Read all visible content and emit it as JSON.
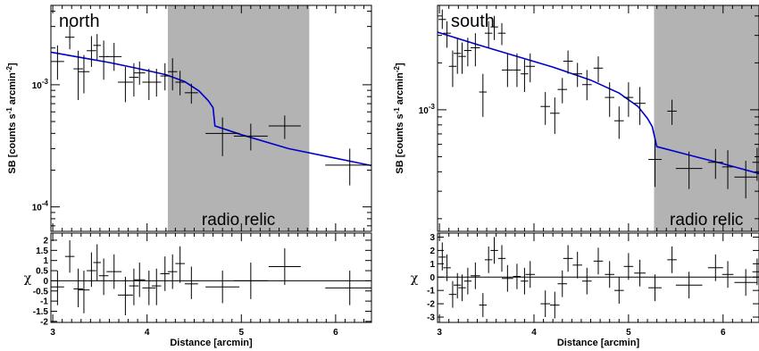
{
  "chart_data": [
    {
      "type": "scatter",
      "panel_label": "north",
      "ylabel": "SB [counts s-1 arcmin-2]",
      "xlabel": "Distance [arcmin]",
      "residual_label": "χ",
      "shade_label": "radio relic",
      "shade_range": [
        4.22,
        5.72
      ],
      "xlim": [
        2.98,
        6.38
      ],
      "ylim_log": [
        -4.2,
        -2.35
      ],
      "x_ticks": [
        3,
        4,
        5,
        6
      ],
      "y_ticks": [
        {
          "value": 0.001,
          "label": "10-3"
        },
        {
          "value": 0.0001,
          "label": "10-4"
        }
      ],
      "residual_ylim": [
        -2.05,
        2.35
      ],
      "residual_ticks": [
        "-2",
        "-1.5",
        "-1",
        "-0.5",
        "0",
        "0.5",
        "1",
        "1.5",
        "2"
      ],
      "points": [
        {
          "x": 3.05,
          "xerr": 0.07,
          "y": 0.00155,
          "ylo": 0.0011,
          "yhi": 0.0021
        },
        {
          "x": 3.18,
          "xerr": 0.05,
          "y": 0.00245,
          "ylo": 0.00195,
          "yhi": 0.00305
        },
        {
          "x": 3.27,
          "xerr": 0.05,
          "y": 0.00135,
          "ylo": 0.00075,
          "yhi": 0.0019
        },
        {
          "x": 3.33,
          "xerr": 0.06,
          "y": 0.00128,
          "ylo": 0.00085,
          "yhi": 0.00175
        },
        {
          "x": 3.41,
          "xerr": 0.05,
          "y": 0.0019,
          "ylo": 0.0014,
          "yhi": 0.0025
        },
        {
          "x": 3.47,
          "xerr": 0.04,
          "y": 0.0021,
          "ylo": 0.0016,
          "yhi": 0.0026
        },
        {
          "x": 3.54,
          "xerr": 0.05,
          "y": 0.0017,
          "ylo": 0.0011,
          "yhi": 0.0023
        },
        {
          "x": 3.65,
          "xerr": 0.08,
          "y": 0.0017,
          "ylo": 0.0013,
          "yhi": 0.0022
        },
        {
          "x": 3.77,
          "xerr": 0.08,
          "y": 0.00105,
          "ylo": 0.00072,
          "yhi": 0.0014
        },
        {
          "x": 3.86,
          "xerr": 0.05,
          "y": 0.00115,
          "ylo": 0.0008,
          "yhi": 0.0015
        },
        {
          "x": 3.92,
          "xerr": 0.06,
          "y": 0.00125,
          "ylo": 0.001,
          "yhi": 0.00155
        },
        {
          "x": 4.02,
          "xerr": 0.07,
          "y": 0.00105,
          "ylo": 0.00075,
          "yhi": 0.00135
        },
        {
          "x": 4.1,
          "xerr": 0.05,
          "y": 0.00105,
          "ylo": 0.0008,
          "yhi": 0.00135
        },
        {
          "x": 4.19,
          "xerr": 0.05,
          "y": 0.00118,
          "ylo": 0.0009,
          "yhi": 0.0015
        },
        {
          "x": 4.27,
          "xerr": 0.05,
          "y": 0.00128,
          "ylo": 0.0009,
          "yhi": 0.00165
        },
        {
          "x": 4.35,
          "xerr": 0.05,
          "y": 0.00105,
          "ylo": 0.00082,
          "yhi": 0.0013
        },
        {
          "x": 4.47,
          "xerr": 0.07,
          "y": 0.00086,
          "ylo": 0.0007,
          "yhi": 0.00102
        },
        {
          "x": 4.8,
          "xerr": 0.18,
          "y": 0.0004,
          "ylo": 0.00026,
          "yhi": 0.00054
        },
        {
          "x": 5.1,
          "xerr": 0.18,
          "y": 0.00038,
          "ylo": 0.00029,
          "yhi": 0.00048
        },
        {
          "x": 5.46,
          "xerr": 0.17,
          "y": 0.00046,
          "ylo": 0.00036,
          "yhi": 0.00056
        },
        {
          "x": 6.15,
          "xerr": 0.26,
          "y": 0.00022,
          "ylo": 0.00015,
          "yhi": 0.0003
        }
      ],
      "model": [
        [
          2.98,
          0.00185
        ],
        [
          3.3,
          0.00167
        ],
        [
          3.6,
          0.00152
        ],
        [
          3.9,
          0.00136
        ],
        [
          4.2,
          0.00121
        ],
        [
          4.4,
          0.00106
        ],
        [
          4.55,
          0.00089
        ],
        [
          4.65,
          0.00074
        ],
        [
          4.7,
          0.00065
        ],
        [
          4.72,
          0.00046
        ],
        [
          5.0,
          0.00039
        ],
        [
          5.5,
          0.0003
        ],
        [
          6.0,
          0.00025
        ],
        [
          6.38,
          0.000218
        ]
      ],
      "residuals": [
        {
          "x": 3.05,
          "xerr": 0.07,
          "y": -0.3,
          "ylo": -1.2,
          "yhi": 0.5
        },
        {
          "x": 3.18,
          "xerr": 0.05,
          "y": 1.2,
          "ylo": 0.4,
          "yhi": 2.0
        },
        {
          "x": 3.27,
          "xerr": 0.05,
          "y": -0.4,
          "ylo": -1.3,
          "yhi": 0.6
        },
        {
          "x": 3.33,
          "xerr": 0.06,
          "y": -0.45,
          "ylo": -1.6,
          "yhi": 0.5
        },
        {
          "x": 3.41,
          "xerr": 0.05,
          "y": 0.5,
          "ylo": -0.3,
          "yhi": 1.4
        },
        {
          "x": 3.47,
          "xerr": 0.04,
          "y": 0.9,
          "ylo": 0.0,
          "yhi": 1.8
        },
        {
          "x": 3.54,
          "xerr": 0.05,
          "y": 0.25,
          "ylo": -0.7,
          "yhi": 1.1
        },
        {
          "x": 3.65,
          "xerr": 0.08,
          "y": 0.45,
          "ylo": -0.4,
          "yhi": 1.3
        },
        {
          "x": 3.77,
          "xerr": 0.08,
          "y": -0.7,
          "ylo": -1.7,
          "yhi": 0.2
        },
        {
          "x": 3.86,
          "xerr": 0.05,
          "y": -0.25,
          "ylo": -1.2,
          "yhi": 0.6
        },
        {
          "x": 3.92,
          "xerr": 0.06,
          "y": 0.05,
          "ylo": -0.8,
          "yhi": 0.9
        },
        {
          "x": 4.02,
          "xerr": 0.07,
          "y": -0.35,
          "ylo": -1.2,
          "yhi": 0.5
        },
        {
          "x": 4.1,
          "xerr": 0.05,
          "y": -0.25,
          "ylo": -1.2,
          "yhi": 0.6
        },
        {
          "x": 4.19,
          "xerr": 0.05,
          "y": 0.35,
          "ylo": -0.5,
          "yhi": 1.2
        },
        {
          "x": 4.27,
          "xerr": 0.05,
          "y": 0.45,
          "ylo": -0.4,
          "yhi": 1.3
        },
        {
          "x": 4.35,
          "xerr": 0.05,
          "y": 0.85,
          "ylo": -0.1,
          "yhi": 1.7
        },
        {
          "x": 4.47,
          "xerr": 0.07,
          "y": -0.15,
          "ylo": -0.9,
          "yhi": 0.7
        },
        {
          "x": 4.8,
          "xerr": 0.18,
          "y": -0.3,
          "ylo": -1.1,
          "yhi": 0.5
        },
        {
          "x": 5.1,
          "xerr": 0.18,
          "y": 0.0,
          "ylo": -0.9,
          "yhi": 0.9
        },
        {
          "x": 5.46,
          "xerr": 0.17,
          "y": 0.7,
          "ylo": -0.2,
          "yhi": 1.6
        },
        {
          "x": 6.15,
          "xerr": 0.26,
          "y": -0.35,
          "ylo": -1.2,
          "yhi": 0.5
        }
      ]
    },
    {
      "type": "scatter",
      "panel_label": "south",
      "ylabel": "SB [counts s-1 arcmin-2]",
      "xlabel": "Distance [arcmin]",
      "residual_label": "χ",
      "shade_label": "radio relic",
      "shade_range": [
        5.27,
        6.5
      ],
      "xlim": [
        2.98,
        6.38
      ],
      "ylim_log": [
        -3.78,
        -2.33
      ],
      "x_ticks": [
        3,
        4,
        5,
        6
      ],
      "y_ticks": [
        {
          "value": 0.001,
          "label": "10-3"
        }
      ],
      "residual_ylim": [
        -3.4,
        3.3
      ],
      "residual_ticks": [
        "-3",
        "-2",
        "-1",
        "0",
        "1",
        "2",
        "3"
      ],
      "points": [
        {
          "x": 3.03,
          "xerr": 0.04,
          "y": 0.0038,
          "ylo": 0.0033,
          "yhi": 0.0044
        },
        {
          "x": 3.08,
          "xerr": 0.04,
          "y": 0.0031,
          "ylo": 0.0025,
          "yhi": 0.0037
        },
        {
          "x": 3.14,
          "xerr": 0.04,
          "y": 0.0019,
          "ylo": 0.0014,
          "yhi": 0.0024
        },
        {
          "x": 3.19,
          "xerr": 0.04,
          "y": 0.0023,
          "ylo": 0.0017,
          "yhi": 0.0029
        },
        {
          "x": 3.24,
          "xerr": 0.04,
          "y": 0.0022,
          "ylo": 0.0017,
          "yhi": 0.0027
        },
        {
          "x": 3.3,
          "xerr": 0.04,
          "y": 0.0024,
          "ylo": 0.0019,
          "yhi": 0.0029
        },
        {
          "x": 3.38,
          "xerr": 0.05,
          "y": 0.0025,
          "ylo": 0.0019,
          "yhi": 0.0031
        },
        {
          "x": 3.46,
          "xerr": 0.04,
          "y": 0.0013,
          "ylo": 0.0009,
          "yhi": 0.0017
        },
        {
          "x": 3.52,
          "xerr": 0.04,
          "y": 0.0031,
          "ylo": 0.0025,
          "yhi": 0.0037
        },
        {
          "x": 3.58,
          "xerr": 0.04,
          "y": 0.0034,
          "ylo": 0.0028,
          "yhi": 0.004
        },
        {
          "x": 3.66,
          "xerr": 0.04,
          "y": 0.0031,
          "ylo": 0.0026,
          "yhi": 0.0036
        },
        {
          "x": 3.72,
          "xerr": 0.06,
          "y": 0.0018,
          "ylo": 0.0014,
          "yhi": 0.0023
        },
        {
          "x": 3.82,
          "xerr": 0.04,
          "y": 0.0018,
          "ylo": 0.0014,
          "yhi": 0.0023
        },
        {
          "x": 3.9,
          "xerr": 0.04,
          "y": 0.0017,
          "ylo": 0.0013,
          "yhi": 0.0021
        },
        {
          "x": 3.96,
          "xerr": 0.05,
          "y": 0.0019,
          "ylo": 0.0015,
          "yhi": 0.0023
        },
        {
          "x": 4.12,
          "xerr": 0.05,
          "y": 0.00105,
          "ylo": 0.0008,
          "yhi": 0.0013
        },
        {
          "x": 4.22,
          "xerr": 0.05,
          "y": 0.00095,
          "ylo": 0.0007,
          "yhi": 0.0012
        },
        {
          "x": 4.3,
          "xerr": 0.05,
          "y": 0.00135,
          "ylo": 0.0011,
          "yhi": 0.0016
        },
        {
          "x": 4.36,
          "xerr": 0.05,
          "y": 0.00205,
          "ylo": 0.0017,
          "yhi": 0.0024
        },
        {
          "x": 4.46,
          "xerr": 0.05,
          "y": 0.0017,
          "ylo": 0.0014,
          "yhi": 0.002
        },
        {
          "x": 4.56,
          "xerr": 0.05,
          "y": 0.00145,
          "ylo": 0.00115,
          "yhi": 0.0018
        },
        {
          "x": 4.68,
          "xerr": 0.05,
          "y": 0.00185,
          "ylo": 0.0015,
          "yhi": 0.0022
        },
        {
          "x": 4.8,
          "xerr": 0.05,
          "y": 0.0012,
          "ylo": 0.0009,
          "yhi": 0.0015
        },
        {
          "x": 4.9,
          "xerr": 0.05,
          "y": 0.00085,
          "ylo": 0.00065,
          "yhi": 0.00105
        },
        {
          "x": 5.0,
          "xerr": 0.05,
          "y": 0.0012,
          "ylo": 0.0009,
          "yhi": 0.0015
        },
        {
          "x": 5.12,
          "xerr": 0.06,
          "y": 0.0011,
          "ylo": 0.0008,
          "yhi": 0.0014
        },
        {
          "x": 5.28,
          "xerr": 0.07,
          "y": 0.00048,
          "ylo": 0.00032,
          "yhi": 0.00064
        },
        {
          "x": 5.46,
          "xerr": 0.05,
          "y": 0.00098,
          "ylo": 0.0008,
          "yhi": 0.00116
        },
        {
          "x": 5.64,
          "xerr": 0.14,
          "y": 0.00042,
          "ylo": 0.00031,
          "yhi": 0.00054
        },
        {
          "x": 5.92,
          "xerr": 0.08,
          "y": 0.00046,
          "ylo": 0.00036,
          "yhi": 0.00056
        },
        {
          "x": 6.05,
          "xerr": 0.06,
          "y": 0.00043,
          "ylo": 0.00031,
          "yhi": 0.00055
        },
        {
          "x": 6.24,
          "xerr": 0.12,
          "y": 0.00037,
          "ylo": 0.00027,
          "yhi": 0.00047
        },
        {
          "x": 6.36,
          "xerr": 0.05,
          "y": 0.00046,
          "ylo": 0.00035,
          "yhi": 0.00057
        }
      ],
      "model": [
        [
          2.98,
          0.00315
        ],
        [
          3.4,
          0.00262
        ],
        [
          3.8,
          0.00222
        ],
        [
          4.2,
          0.00188
        ],
        [
          4.6,
          0.00155
        ],
        [
          4.9,
          0.00128
        ],
        [
          5.1,
          0.00105
        ],
        [
          5.2,
          0.00088
        ],
        [
          5.25,
          0.00078
        ],
        [
          5.3,
          0.00058
        ],
        [
          5.6,
          0.00052
        ],
        [
          6.0,
          0.00045
        ],
        [
          6.38,
          0.00039
        ]
      ],
      "residuals": [
        {
          "x": 3.03,
          "xerr": 0.04,
          "y": 1.5,
          "ylo": 0.5,
          "yhi": 2.6
        },
        {
          "x": 3.08,
          "xerr": 0.04,
          "y": 0.7,
          "ylo": -0.3,
          "yhi": 1.7
        },
        {
          "x": 3.14,
          "xerr": 0.04,
          "y": -1.3,
          "ylo": -2.3,
          "yhi": -0.3
        },
        {
          "x": 3.19,
          "xerr": 0.04,
          "y": -0.6,
          "ylo": -1.6,
          "yhi": 0.3
        },
        {
          "x": 3.24,
          "xerr": 0.04,
          "y": -0.8,
          "ylo": -1.8,
          "yhi": 0.2
        },
        {
          "x": 3.3,
          "xerr": 0.04,
          "y": -0.3,
          "ylo": -1.3,
          "yhi": 0.7
        },
        {
          "x": 3.38,
          "xerr": 0.05,
          "y": 0.1,
          "ylo": -0.9,
          "yhi": 1.1
        },
        {
          "x": 3.46,
          "xerr": 0.04,
          "y": -2.1,
          "ylo": -3.0,
          "yhi": -1.2
        },
        {
          "x": 3.52,
          "xerr": 0.04,
          "y": 1.3,
          "ylo": 0.3,
          "yhi": 2.3
        },
        {
          "x": 3.58,
          "xerr": 0.04,
          "y": 2.0,
          "ylo": 1.0,
          "yhi": 3.0
        },
        {
          "x": 3.66,
          "xerr": 0.04,
          "y": 1.4,
          "ylo": 0.4,
          "yhi": 2.4
        },
        {
          "x": 3.72,
          "xerr": 0.06,
          "y": -0.1,
          "ylo": -1.1,
          "yhi": 0.9
        },
        {
          "x": 3.82,
          "xerr": 0.04,
          "y": 0.05,
          "ylo": -0.9,
          "yhi": 1.0
        },
        {
          "x": 3.9,
          "xerr": 0.04,
          "y": -0.3,
          "ylo": -1.3,
          "yhi": 0.7
        },
        {
          "x": 3.96,
          "xerr": 0.05,
          "y": 0.2,
          "ylo": -0.8,
          "yhi": 1.2
        },
        {
          "x": 4.12,
          "xerr": 0.05,
          "y": -2.0,
          "ylo": -3.0,
          "yhi": -1.0
        },
        {
          "x": 4.22,
          "xerr": 0.05,
          "y": -2.1,
          "ylo": -3.1,
          "yhi": -1.1
        },
        {
          "x": 4.3,
          "xerr": 0.05,
          "y": -0.5,
          "ylo": -1.5,
          "yhi": 0.5
        },
        {
          "x": 4.36,
          "xerr": 0.05,
          "y": 1.4,
          "ylo": 0.4,
          "yhi": 2.4
        },
        {
          "x": 4.46,
          "xerr": 0.05,
          "y": 0.9,
          "ylo": -0.1,
          "yhi": 1.9
        },
        {
          "x": 4.56,
          "xerr": 0.05,
          "y": -0.3,
          "ylo": -1.3,
          "yhi": 0.7
        },
        {
          "x": 4.68,
          "xerr": 0.05,
          "y": 1.2,
          "ylo": 0.2,
          "yhi": 2.2
        },
        {
          "x": 4.8,
          "xerr": 0.05,
          "y": 0.2,
          "ylo": -0.8,
          "yhi": 1.2
        },
        {
          "x": 4.9,
          "xerr": 0.05,
          "y": -1.0,
          "ylo": -2.0,
          "yhi": 0.0
        },
        {
          "x": 5.0,
          "xerr": 0.05,
          "y": 0.8,
          "ylo": -0.2,
          "yhi": 1.8
        },
        {
          "x": 5.12,
          "xerr": 0.06,
          "y": 0.3,
          "ylo": -0.7,
          "yhi": 1.3
        },
        {
          "x": 5.28,
          "xerr": 0.07,
          "y": -0.8,
          "ylo": -1.8,
          "yhi": 0.2
        },
        {
          "x": 5.46,
          "xerr": 0.05,
          "y": 1.3,
          "ylo": 0.3,
          "yhi": 2.3
        },
        {
          "x": 5.64,
          "xerr": 0.14,
          "y": -0.6,
          "ylo": -1.6,
          "yhi": 0.4
        },
        {
          "x": 5.92,
          "xerr": 0.08,
          "y": 0.7,
          "ylo": -0.3,
          "yhi": 1.7
        },
        {
          "x": 6.05,
          "xerr": 0.06,
          "y": 0.2,
          "ylo": -0.8,
          "yhi": 1.2
        },
        {
          "x": 6.24,
          "xerr": 0.12,
          "y": -0.4,
          "ylo": -1.4,
          "yhi": 0.6
        },
        {
          "x": 6.36,
          "xerr": 0.05,
          "y": 0.4,
          "ylo": -0.6,
          "yhi": 1.4
        }
      ]
    }
  ],
  "colors": {
    "shade": "#b3b3b3",
    "model_line": "#0000cc",
    "points": "#000000"
  }
}
